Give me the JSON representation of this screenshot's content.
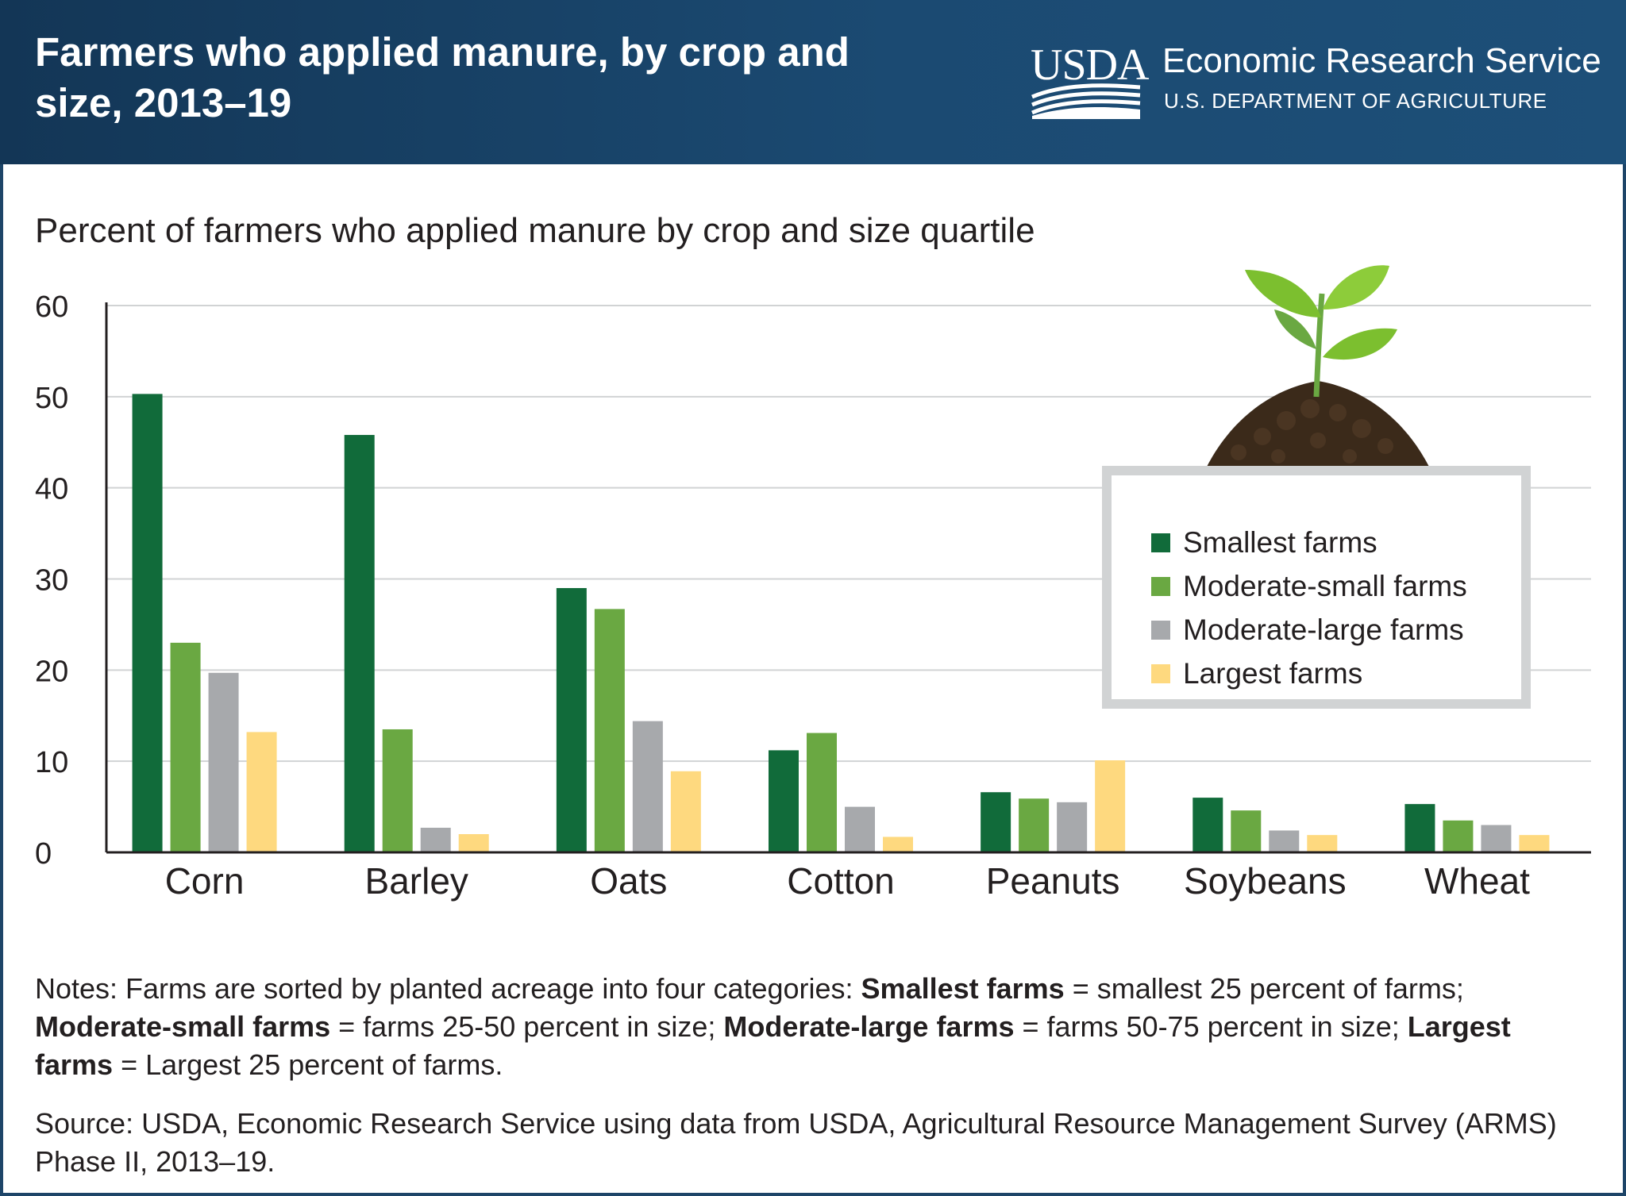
{
  "header": {
    "title": "Farmers who applied manure, by crop and size, 2013–19",
    "logo_text": "USDA",
    "agency_name": "Economic Research Service",
    "department": "U.S. DEPARTMENT OF AGRICULTURE"
  },
  "chart_data": {
    "type": "bar",
    "title": "Percent of farmers who applied manure by crop and size quartile",
    "xlabel": "",
    "ylabel": "",
    "ylim": [
      0,
      60
    ],
    "yticks": [
      0,
      10,
      20,
      30,
      40,
      50,
      60
    ],
    "grid": true,
    "legend_position": "right",
    "categories": [
      "Corn",
      "Barley",
      "Oats",
      "Cotton",
      "Peanuts",
      "Soybeans",
      "Wheat"
    ],
    "series": [
      {
        "name": "Smallest farms",
        "color": "#116b3a",
        "values": [
          50.3,
          45.8,
          29.0,
          11.2,
          6.6,
          6.0,
          5.3
        ]
      },
      {
        "name": "Moderate-small farms",
        "color": "#6aa842",
        "values": [
          23.0,
          13.5,
          26.7,
          13.1,
          5.9,
          4.6,
          3.5
        ]
      },
      {
        "name": "Moderate-large farms",
        "color": "#a7a9ac",
        "values": [
          19.7,
          2.7,
          14.4,
          5.0,
          5.5,
          2.4,
          3.0
        ]
      },
      {
        "name": "Largest farms",
        "color": "#fed97f",
        "values": [
          13.2,
          2.0,
          8.9,
          1.7,
          10.1,
          1.9,
          1.9
        ]
      }
    ]
  },
  "notes": {
    "prefix": "Notes: Farms are sorted by planted acreage into four categories: ",
    "t1": "Smallest farms",
    "d1": " = smallest 25 percent of farms; ",
    "t2": "Moderate-small farms",
    "d2": " = farms 25-50 percent in size; ",
    "t3": "Moderate-large farms",
    "d3": " = farms 50-75 percent in size; ",
    "t4": "Largest farms",
    "d4": " = Largest 25 percent of farms."
  },
  "source": "Source: USDA, Economic Research Service using data from USDA, Agricultural Resource Management Survey (ARMS) Phase II, 2013–19.",
  "colors": {
    "header_bg": "#1b4a72",
    "gridline": "#d1d3d4",
    "axis": "#231f20"
  },
  "icons": [
    "usda-logo-icon",
    "sprout-in-soil-icon"
  ]
}
